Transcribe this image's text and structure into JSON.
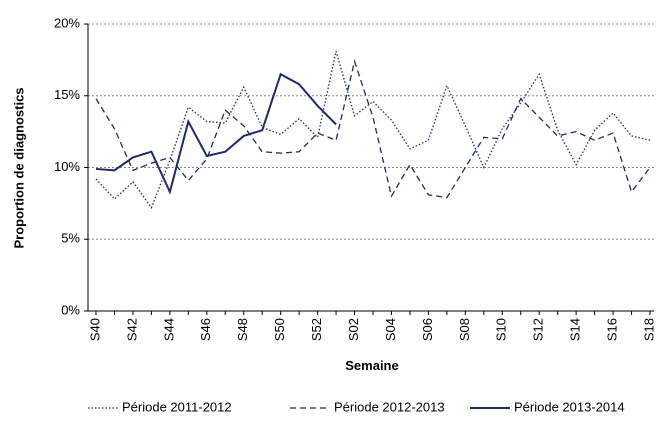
{
  "chart_data": {
    "type": "line",
    "x_label": "Semaine",
    "y_label": "Proportion de diagnostics",
    "categories": [
      "S40",
      null,
      "S42",
      null,
      "S44",
      null,
      "S46",
      null,
      "S48",
      null,
      "S50",
      null,
      "S52",
      null,
      "S02",
      null,
      "S04",
      null,
      "S06",
      null,
      "S08",
      null,
      "S10",
      null,
      "S12",
      null,
      "S14",
      null,
      "S16",
      null,
      "S18"
    ],
    "ylim": [
      0,
      20
    ],
    "yticks": [
      {
        "value": 0,
        "label": "0%"
      },
      {
        "value": 5,
        "label": "5%"
      },
      {
        "value": 10,
        "label": "10%"
      },
      {
        "value": 15,
        "label": "15%"
      },
      {
        "value": 20,
        "label": "20%"
      }
    ],
    "grid": true,
    "legend": "bottom",
    "series": [
      {
        "name": "Période 2011-2012",
        "color": "#1f2a6b",
        "style": "dotted",
        "values": [
          9.2,
          7.8,
          9.0,
          7.2,
          10.5,
          14.2,
          13.2,
          13.1,
          15.6,
          12.8,
          12.3,
          13.4,
          12.1,
          18.1,
          13.6,
          14.6,
          13.3,
          11.3,
          11.9,
          15.7,
          12.9,
          10.0,
          12.7,
          14.5,
          16.5,
          12.6,
          10.2,
          12.6,
          13.8,
          12.2,
          11.9
        ]
      },
      {
        "name": "Période 2012-2013",
        "color": "#1f2a6b",
        "style": "dashed",
        "values": [
          14.8,
          12.7,
          9.8,
          10.3,
          10.7,
          9.1,
          10.6,
          14.0,
          12.9,
          11.1,
          11.0,
          11.1,
          12.4,
          11.9,
          17.4,
          13.5,
          8.0,
          10.2,
          8.1,
          7.9,
          10.0,
          12.1,
          12.0,
          14.8,
          13.5,
          12.2,
          12.5,
          11.9,
          12.4,
          8.3,
          10.0
        ]
      },
      {
        "name": "Période 2013-2014",
        "color": "#1f2a6b",
        "style": "solid",
        "values": [
          9.9,
          9.8,
          10.7,
          11.1,
          8.3,
          13.2,
          10.8,
          11.1,
          12.2,
          12.6,
          16.5,
          15.8,
          14.3,
          13.0,
          null,
          null,
          null,
          null,
          null,
          null,
          null,
          null,
          null,
          null,
          null,
          null,
          null,
          null,
          null,
          null,
          null
        ]
      }
    ]
  }
}
